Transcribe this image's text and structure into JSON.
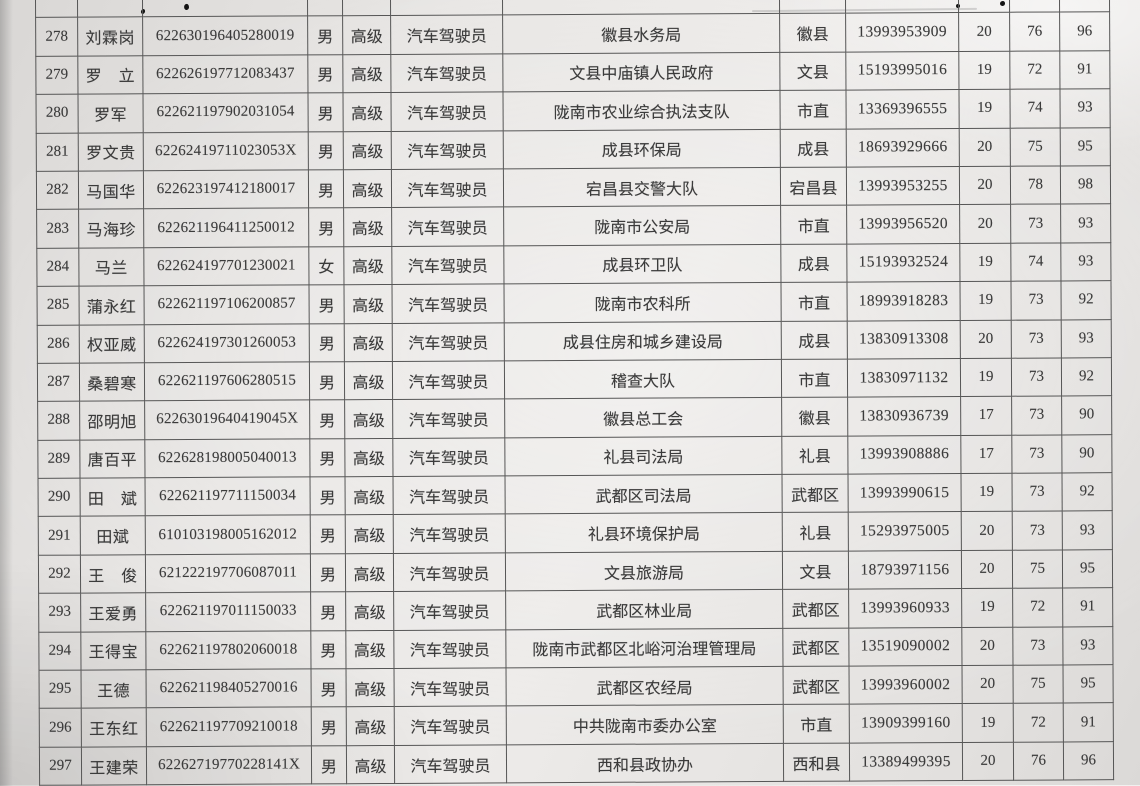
{
  "page": {
    "paper_color": "#e8e6e4",
    "ink_color": "#3b3b3b",
    "grid_color": "#565656"
  },
  "table": {
    "columns": [
      {
        "key": "seq"
      },
      {
        "key": "name"
      },
      {
        "key": "id"
      },
      {
        "key": "gender"
      },
      {
        "key": "level"
      },
      {
        "key": "occupation"
      },
      {
        "key": "unit"
      },
      {
        "key": "county"
      },
      {
        "key": "phone"
      },
      {
        "key": "s1"
      },
      {
        "key": "s2"
      },
      {
        "key": "s3"
      }
    ],
    "rows": [
      {
        "seq": "278",
        "name": "刘霖岗",
        "id": "622630196405280019",
        "gender": "男",
        "level": "高级",
        "occupation": "汽车驾驶员",
        "unit": "徽县水务局",
        "county": "徽县",
        "phone": "13993953909",
        "s1": "20",
        "s2": "76",
        "s3": "96"
      },
      {
        "seq": "279",
        "name": "罗　立",
        "id": "622626197712083437",
        "gender": "男",
        "level": "高级",
        "occupation": "汽车驾驶员",
        "unit": "文县中庙镇人民政府",
        "county": "文县",
        "phone": "15193995016",
        "s1": "19",
        "s2": "72",
        "s3": "91"
      },
      {
        "seq": "280",
        "name": "罗军",
        "id": "622621197902031054",
        "gender": "男",
        "level": "高级",
        "occupation": "汽车驾驶员",
        "unit": "陇南市农业综合执法支队",
        "county": "市直",
        "phone": "13369396555",
        "s1": "19",
        "s2": "74",
        "s3": "93"
      },
      {
        "seq": "281",
        "name": "罗文贵",
        "id": "62262419711023053X",
        "gender": "男",
        "level": "高级",
        "occupation": "汽车驾驶员",
        "unit": "成县环保局",
        "county": "成县",
        "phone": "18693929666",
        "s1": "20",
        "s2": "75",
        "s3": "95"
      },
      {
        "seq": "282",
        "name": "马国华",
        "id": "622623197412180017",
        "gender": "男",
        "level": "高级",
        "occupation": "汽车驾驶员",
        "unit": "宕昌县交警大队",
        "county": "宕昌县",
        "phone": "13993953255",
        "s1": "20",
        "s2": "78",
        "s3": "98"
      },
      {
        "seq": "283",
        "name": "马海珍",
        "id": "622621196411250012",
        "gender": "男",
        "level": "高级",
        "occupation": "汽车驾驶员",
        "unit": "陇南市公安局",
        "county": "市直",
        "phone": "13993956520",
        "s1": "20",
        "s2": "73",
        "s3": "93"
      },
      {
        "seq": "284",
        "name": "马兰",
        "id": "622624197701230021",
        "gender": "女",
        "level": "高级",
        "occupation": "汽车驾驶员",
        "unit": "成县环卫队",
        "county": "成县",
        "phone": "15193932524",
        "s1": "19",
        "s2": "74",
        "s3": "93"
      },
      {
        "seq": "285",
        "name": "蒲永红",
        "id": "622621197106200857",
        "gender": "男",
        "level": "高级",
        "occupation": "汽车驾驶员",
        "unit": "陇南市农科所",
        "county": "市直",
        "phone": "18993918283",
        "s1": "19",
        "s2": "73",
        "s3": "92"
      },
      {
        "seq": "286",
        "name": "权亚威",
        "id": "622624197301260053",
        "gender": "男",
        "level": "高级",
        "occupation": "汽车驾驶员",
        "unit": "成县住房和城乡建设局",
        "county": "成县",
        "phone": "13830913308",
        "s1": "20",
        "s2": "73",
        "s3": "93"
      },
      {
        "seq": "287",
        "name": "桑碧寒",
        "id": "622621197606280515",
        "gender": "男",
        "level": "高级",
        "occupation": "汽车驾驶员",
        "unit": "稽查大队",
        "county": "市直",
        "phone": "13830971132",
        "s1": "19",
        "s2": "73",
        "s3": "92"
      },
      {
        "seq": "288",
        "name": "邵明旭",
        "id": "62263019640419045X",
        "gender": "男",
        "level": "高级",
        "occupation": "汽车驾驶员",
        "unit": "徽县总工会",
        "county": "徽县",
        "phone": "13830936739",
        "s1": "17",
        "s2": "73",
        "s3": "90"
      },
      {
        "seq": "289",
        "name": "唐百平",
        "id": "622628198005040013",
        "gender": "男",
        "level": "高级",
        "occupation": "汽车驾驶员",
        "unit": "礼县司法局",
        "county": "礼县",
        "phone": "13993908886",
        "s1": "17",
        "s2": "73",
        "s3": "90"
      },
      {
        "seq": "290",
        "name": "田　斌",
        "id": "622621197711150034",
        "gender": "男",
        "level": "高级",
        "occupation": "汽车驾驶员",
        "unit": "武都区司法局",
        "county": "武都区",
        "phone": "13993990615",
        "s1": "19",
        "s2": "73",
        "s3": "92"
      },
      {
        "seq": "291",
        "name": "田斌",
        "id": "610103198005162012",
        "gender": "男",
        "level": "高级",
        "occupation": "汽车驾驶员",
        "unit": "礼县环境保护局",
        "county": "礼县",
        "phone": "15293975005",
        "s1": "20",
        "s2": "73",
        "s3": "93"
      },
      {
        "seq": "292",
        "name": "王　俊",
        "id": "621222197706087011",
        "gender": "男",
        "level": "高级",
        "occupation": "汽车驾驶员",
        "unit": "文县旅游局",
        "county": "文县",
        "phone": "18793971156",
        "s1": "20",
        "s2": "75",
        "s3": "95"
      },
      {
        "seq": "293",
        "name": "王爱勇",
        "id": "622621197011150033",
        "gender": "男",
        "level": "高级",
        "occupation": "汽车驾驶员",
        "unit": "武都区林业局",
        "county": "武都区",
        "phone": "13993960933",
        "s1": "19",
        "s2": "72",
        "s3": "91"
      },
      {
        "seq": "294",
        "name": "王得宝",
        "id": "622621197802060018",
        "gender": "男",
        "level": "高级",
        "occupation": "汽车驾驶员",
        "unit": "陇南市武都区北峪河治理管理局",
        "county": "武都区",
        "phone": "13519090002",
        "s1": "20",
        "s2": "73",
        "s3": "93"
      },
      {
        "seq": "295",
        "name": "王德",
        "id": "622621198405270016",
        "gender": "男",
        "level": "高级",
        "occupation": "汽车驾驶员",
        "unit": "武都区农经局",
        "county": "武都区",
        "phone": "13993960002",
        "s1": "20",
        "s2": "75",
        "s3": "95"
      },
      {
        "seq": "296",
        "name": "王东红",
        "id": "622621197709210018",
        "gender": "男",
        "level": "高级",
        "occupation": "汽车驾驶员",
        "unit": "中共陇南市委办公室",
        "county": "市直",
        "phone": "13909399160",
        "s1": "19",
        "s2": "72",
        "s3": "91"
      },
      {
        "seq": "297",
        "name": "王建荣",
        "id": "62262719770228141X",
        "gender": "男",
        "level": "高级",
        "occupation": "汽车驾驶员",
        "unit": "西和县政协办",
        "county": "西和县",
        "phone": "13389499395",
        "s1": "20",
        "s2": "76",
        "s3": "96"
      }
    ]
  }
}
